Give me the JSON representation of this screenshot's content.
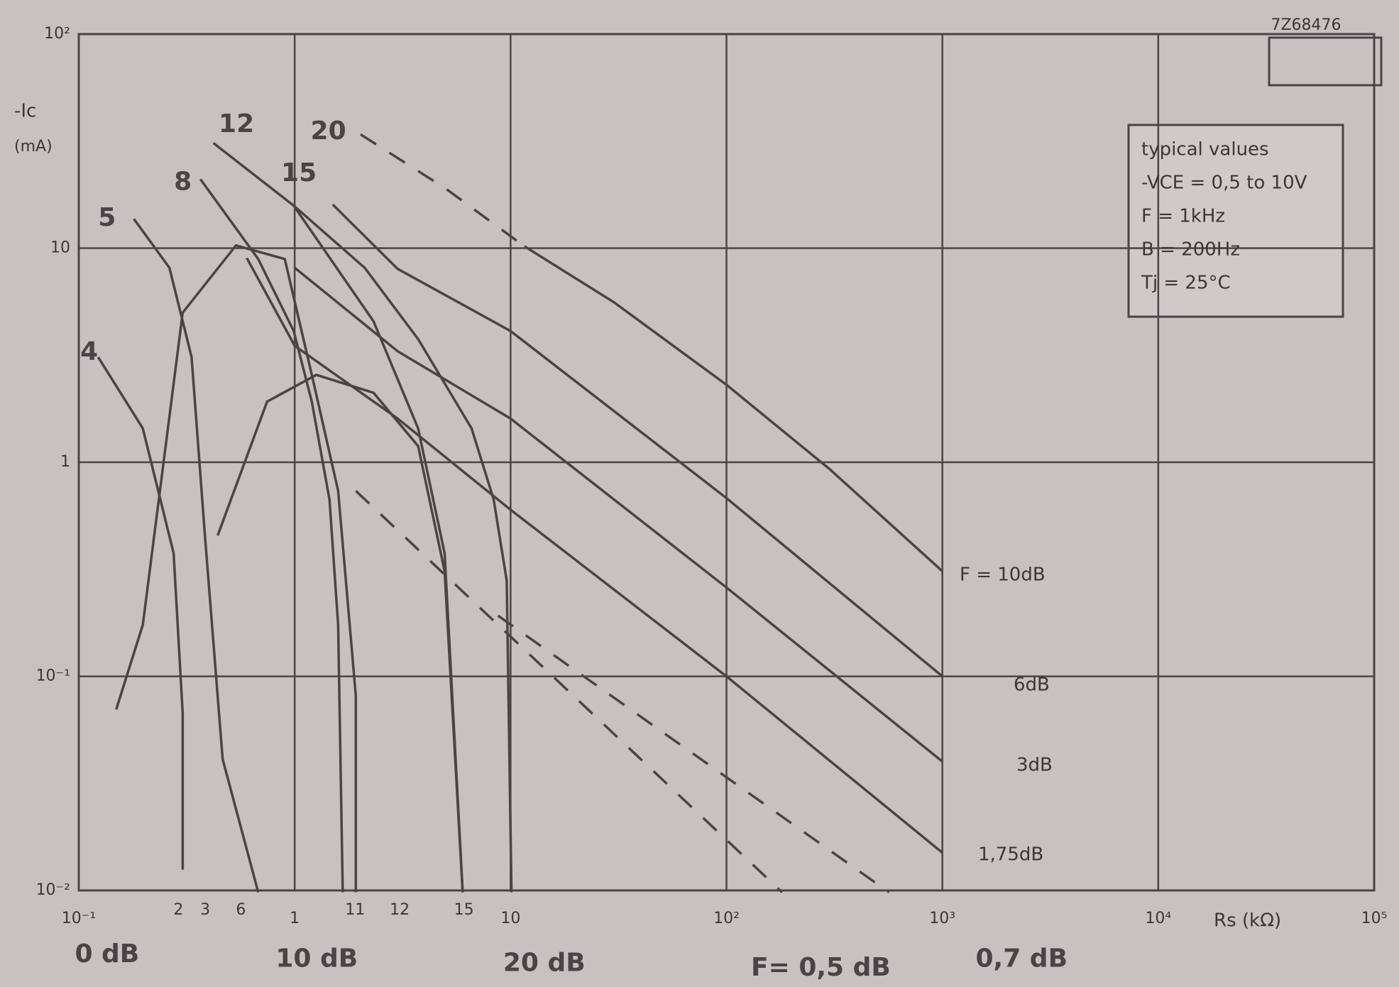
{
  "chart_data": {
    "type": "line",
    "y_label": "-Ic",
    "y_unit": "(mA)",
    "x_label": "Rs (kΩ)",
    "code": "7Z68476",
    "info": [
      "typical values",
      "-VCE = 0,5 to 10V",
      "F = 1kHz",
      "B = 200Hz",
      "Tj = 25°C"
    ],
    "xscale": "log",
    "yscale": "log",
    "grid": true,
    "xlim": [
      0.1,
      100000
    ],
    "ylim": [
      0.01,
      100
    ],
    "xticks": [
      {
        "value": 0.1,
        "label": "10⁻¹"
      },
      1,
      10,
      {
        "value": 100,
        "label": "10²"
      },
      {
        "value": 1000,
        "label": "10³"
      },
      {
        "value": 10000,
        "label": "10⁴"
      },
      {
        "value": 100000,
        "label": "10⁵"
      }
    ],
    "yticks": [
      {
        "value": 0.01,
        "label": "10⁻²"
      },
      {
        "value": 0.1,
        "label": "10⁻¹"
      },
      1,
      10,
      {
        "value": 100,
        "label": "10²"
      }
    ],
    "series": [
      {
        "name": "F = 10dB",
        "color": "#4a4446",
        "dash": false,
        "x": [
          11.6,
          30,
          100,
          300,
          1000
        ],
        "values": [
          10.2,
          5.6,
          2.3,
          0.93,
          0.31
        ]
      },
      {
        "color": "#4a4446",
        "dash": true,
        "x": [
          2.02,
          5,
          11.6
        ],
        "values": [
          34,
          19,
          10.2
        ]
      },
      {
        "name": "6dB",
        "color": "#4a4446",
        "dash": false,
        "x": [
          1.5,
          3,
          10,
          100,
          1000
        ],
        "values": [
          16,
          8,
          4.1,
          0.68,
          0.1
        ]
      },
      {
        "name": "3dB",
        "color": "#4a4446",
        "dash": false,
        "x": [
          1,
          3,
          10,
          100,
          1000
        ],
        "values": [
          8.1,
          3.3,
          1.6,
          0.26,
          0.04
        ]
      },
      {
        "name": "1,75dB",
        "color": "#4a4446",
        "dash": false,
        "x": [
          0.6,
          1,
          3,
          10,
          100,
          1000
        ],
        "values": [
          9,
          3.5,
          1.6,
          0.6,
          0.1,
          0.015
        ]
      },
      {
        "color": "#4a4446",
        "dash": true,
        "x": [
          1.92,
          181
        ],
        "values": [
          0.735,
          0.0098
        ]
      },
      {
        "color": "#4a4446",
        "dash": true,
        "x": [
          8.75,
          566
        ],
        "values": [
          0.192,
          0.0098
        ]
      },
      {
        "color": "#4a4446",
        "dash": false,
        "x": [
          0.123,
          0.198,
          0.275,
          0.303,
          0.303
        ],
        "values": [
          3.1,
          1.44,
          0.376,
          0.067,
          0.0125
        ]
      },
      {
        "color": "#4a4446",
        "dash": false,
        "x": [
          0.18,
          0.263,
          0.333,
          0.384,
          0.464,
          0.678
        ],
        "values": [
          13.7,
          8.1,
          3.1,
          0.455,
          0.041,
          0.0098
        ]
      },
      {
        "color": "#4a4446",
        "dash": false,
        "x": [
          0.149,
          0.198,
          0.303,
          0.535,
          0.9,
          1.2,
          1.59,
          1.92,
          1.92
        ],
        "values": [
          0.07,
          0.174,
          5,
          10.3,
          8.9,
          2.56,
          0.735,
          0.081,
          0.0098
        ]
      },
      {
        "color": "#4a4446",
        "dash": false,
        "x": [
          0.366,
          0.678,
          0.99,
          1.2,
          1.45,
          1.59,
          1.67
        ],
        "values": [
          21,
          8.9,
          4.1,
          1.92,
          0.67,
          0.174,
          0.0098
        ]
      },
      {
        "color": "#4a4446",
        "dash": false,
        "x": [
          0.42,
          0.99,
          2.32,
          3.73,
          4.95,
          6
        ],
        "values": [
          31,
          15.8,
          4.55,
          1.44,
          0.376,
          0.0098
        ]
      },
      {
        "color": "#4a4446",
        "dash": false,
        "x": [
          0.99,
          2.11,
          3.73,
          6.6,
          8.35,
          9.6,
          10.1
        ],
        "values": [
          15.8,
          8.1,
          3.76,
          1.44,
          0.67,
          0.28,
          0.0098
        ]
      },
      {
        "color": "#4a4446",
        "dash": false,
        "x": [
          0.44,
          0.745,
          1.26,
          2.32,
          3.73,
          4.95,
          6
        ],
        "values": [
          0.455,
          1.92,
          2.56,
          2.11,
          1.19,
          0.31,
          0.0098
        ]
      }
    ],
    "curve_labels": [
      "4",
      "5",
      "8",
      "12",
      "15",
      "20"
    ],
    "bottom_labels": [
      "2",
      "3",
      "6",
      "11",
      "12",
      "15"
    ],
    "notes": [
      "0 dB",
      "10 dB",
      "20 dB",
      "F= 0,5 dB",
      "0,7 dB"
    ]
  }
}
